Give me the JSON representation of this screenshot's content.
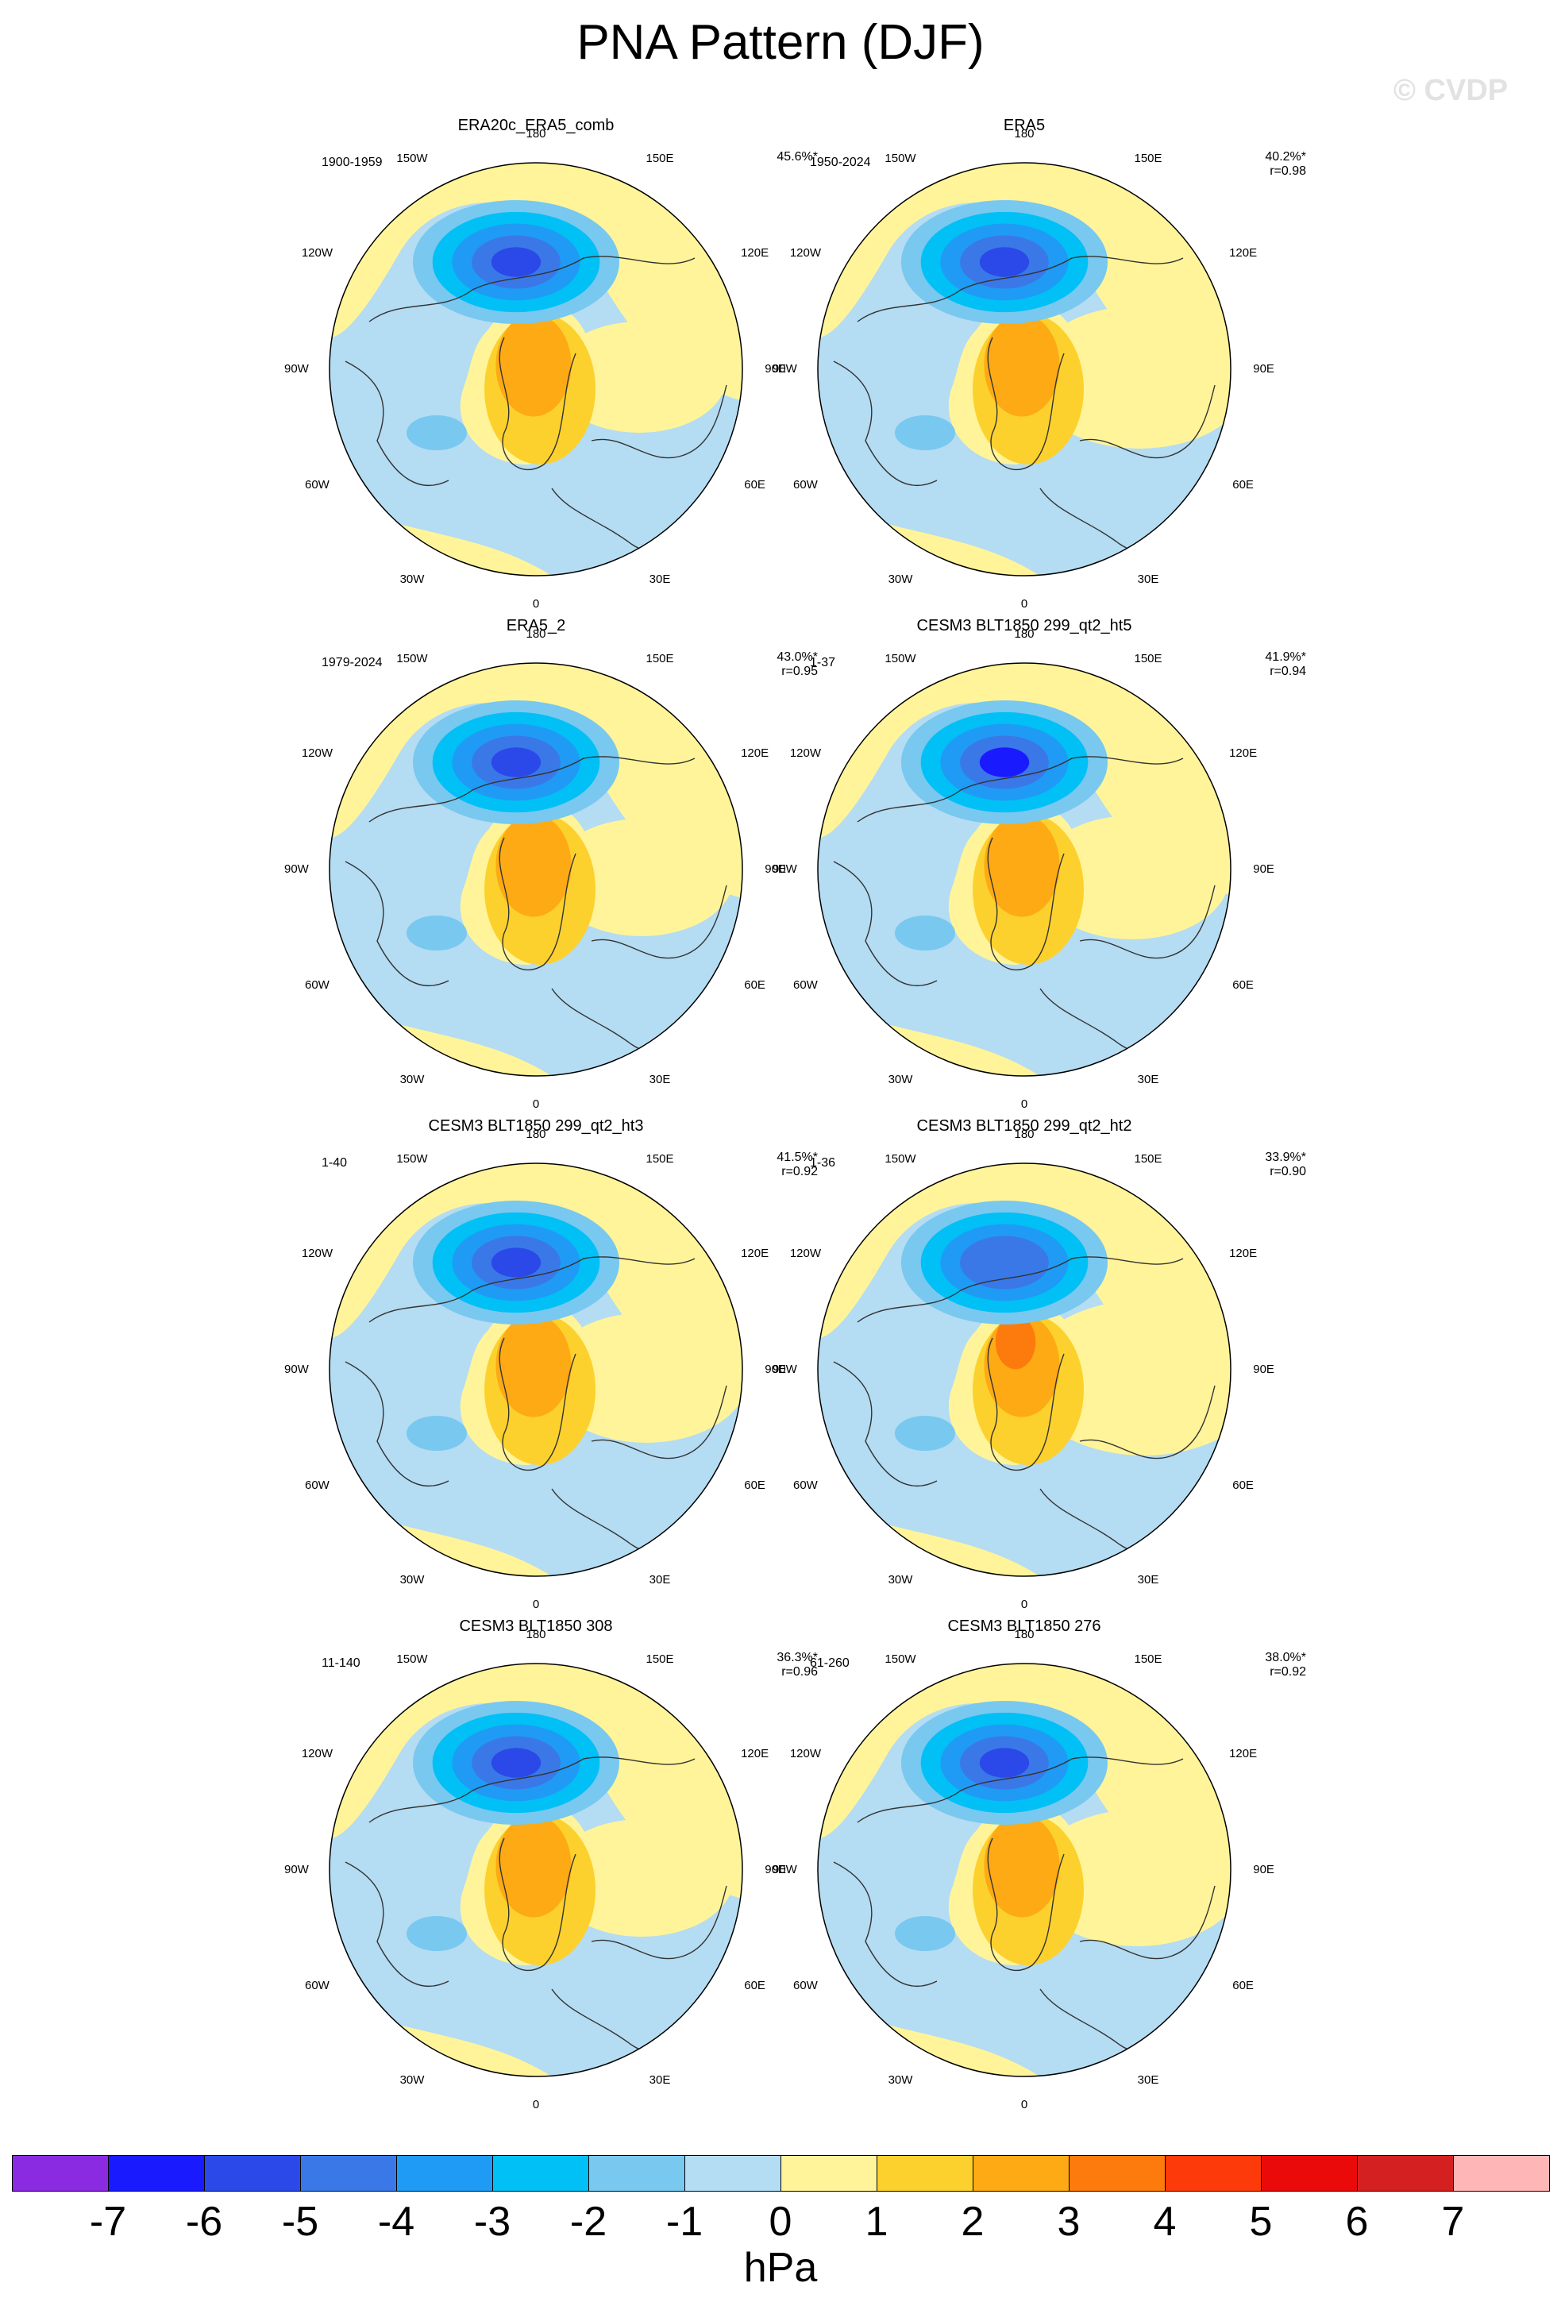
{
  "figure": {
    "title": "PNA Pattern (DJF)",
    "watermark": "© CVDP"
  },
  "map_labels": {
    "top": "180",
    "bottom": "0",
    "upper_left": "150W",
    "upper_right": "150E",
    "mid_upper_left": "120W",
    "mid_upper_right": "120E",
    "left": "90W",
    "right": "90E",
    "mid_lower_left": "60W",
    "mid_lower_right": "60E",
    "lower_left": "30W",
    "lower_right": "30E"
  },
  "panels": [
    {
      "title": "ERA20c_ERA5_comb",
      "period": "1900-1959",
      "pct": "45.6%*",
      "r": ""
    },
    {
      "title": "ERA5",
      "period": "1950-2024",
      "pct": "40.2%*",
      "r": "r=0.98"
    },
    {
      "title": "ERA5_2",
      "period": "1979-2024",
      "pct": "43.0%*",
      "r": "r=0.95"
    },
    {
      "title": "CESM3 BLT1850 299_qt2_ht5",
      "period": "1-37",
      "pct": "41.9%*",
      "r": "r=0.94"
    },
    {
      "title": "CESM3 BLT1850 299_qt2_ht3",
      "period": "1-40",
      "pct": "41.5%*",
      "r": "r=0.92"
    },
    {
      "title": "CESM3 BLT1850 299_qt2_ht2",
      "period": "1-36",
      "pct": "33.9%*",
      "r": "r=0.90"
    },
    {
      "title": "CESM3 BLT1850 308",
      "period": "11-140",
      "pct": "36.3%*",
      "r": "r=0.96"
    },
    {
      "title": "CESM3 BLT1850 276",
      "period": "61-260",
      "pct": "38.0%*",
      "r": "r=0.92"
    }
  ],
  "colorbar": {
    "unit": "hPa",
    "ticks": [
      "-7",
      "-6",
      "-5",
      "-4",
      "-3",
      "-2",
      "-1",
      "0",
      "1",
      "2",
      "3",
      "4",
      "5",
      "6",
      "7"
    ],
    "colors": [
      "#8a2be2",
      "#1a1aff",
      "#2a49e8",
      "#3a78e8",
      "#1f9bf5",
      "#00c0f5",
      "#78c8f0",
      "#b4dcf2",
      "#fff49a",
      "#fdd12d",
      "#fdaa14",
      "#fd7b0c",
      "#fd3a0a",
      "#ea0a0a",
      "#d42020",
      "#ffb6b6"
    ]
  }
}
